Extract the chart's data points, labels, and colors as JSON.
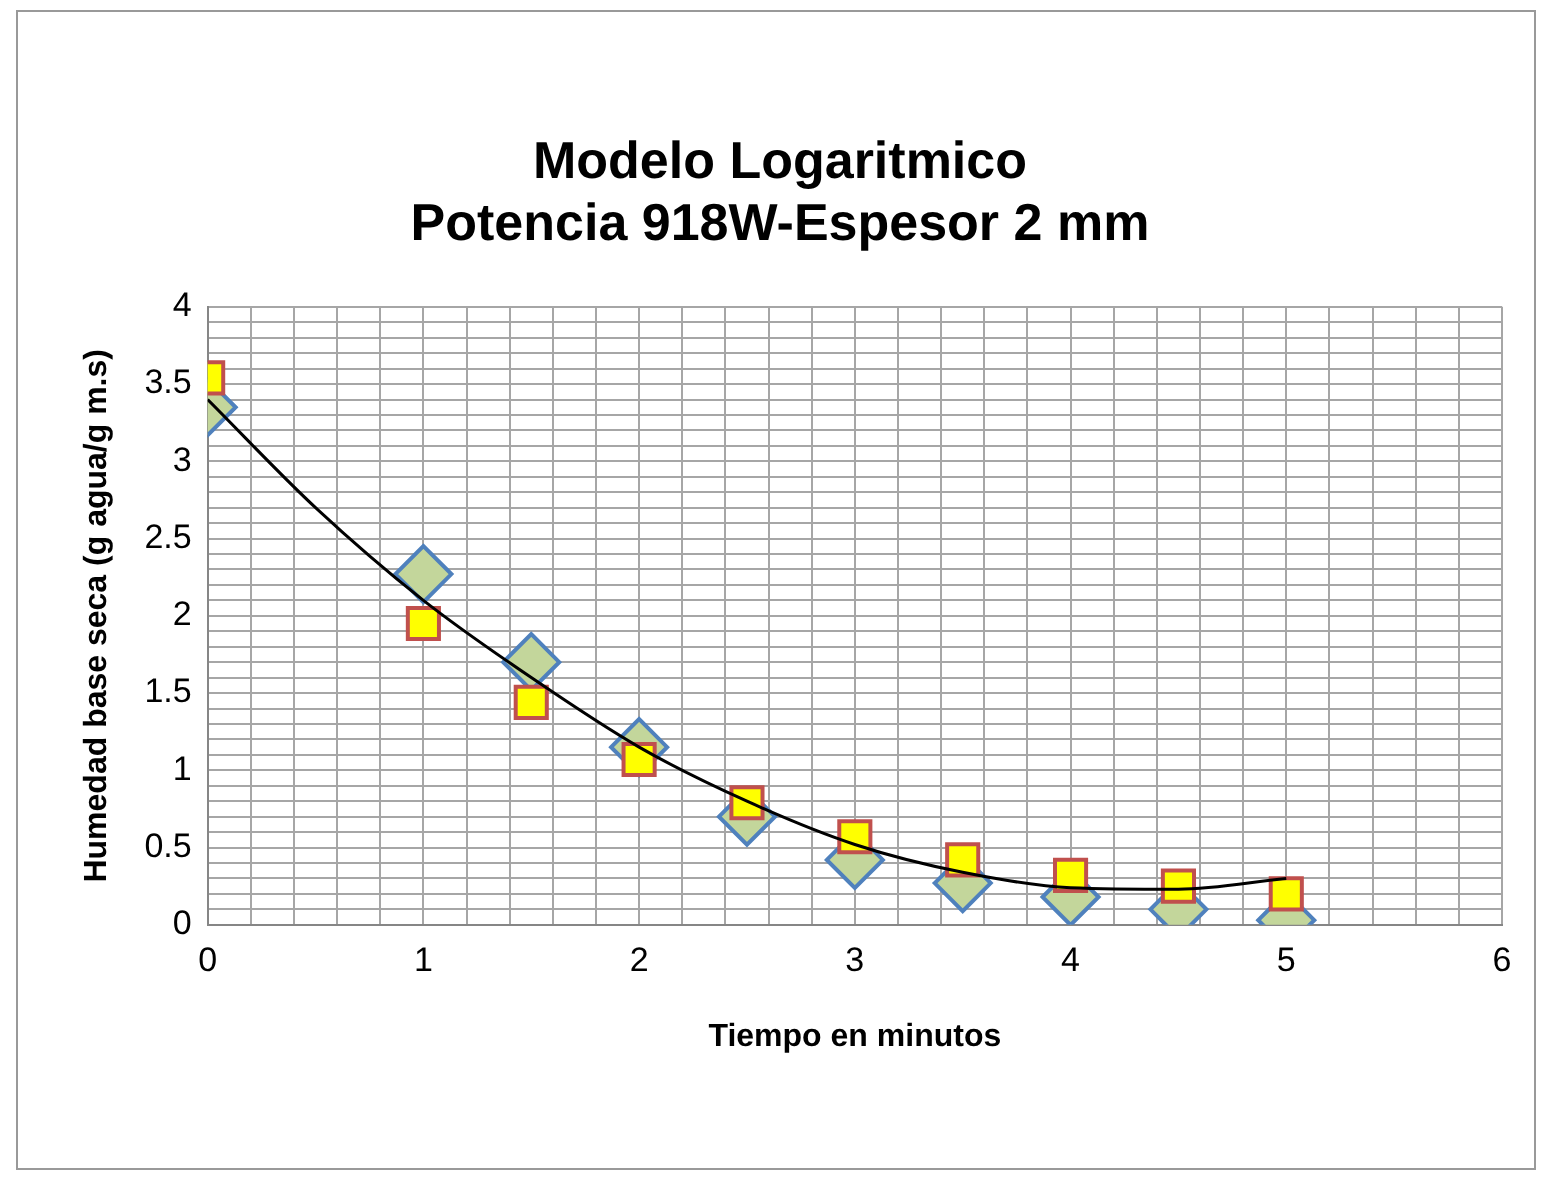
{
  "chart_data": {
    "type": "scatter",
    "title": [
      "Modelo Logaritmico",
      "Potencia 918W-Espesor 2 mm"
    ],
    "xlabel": "Tiempo en minutos",
    "ylabel": "Humedad base seca (g agua/g m.s)",
    "x": [
      0,
      1,
      1.5,
      2,
      2.5,
      3,
      3.5,
      4,
      4.5,
      5
    ],
    "series": [
      {
        "color": "#c3d69b",
        "marker": "diamond",
        "values": [
          3.35,
          2.27,
          1.7,
          1.15,
          0.7,
          0.42,
          0.27,
          0.18,
          0.1,
          0.03
        ]
      },
      {
        "color": "#ffff00",
        "marker": "square",
        "values": [
          3.54,
          1.95,
          1.44,
          1.07,
          0.79,
          0.57,
          0.42,
          0.32,
          0.25,
          0.2
        ]
      },
      {
        "type": "line",
        "color": "#000000",
        "marker": "none",
        "x": [
          0,
          0.5,
          1,
          1.5,
          2,
          2.5,
          3,
          3.5,
          4,
          4.5,
          5
        ],
        "values": [
          3.4,
          2.7,
          2.1,
          1.6,
          1.15,
          0.8,
          0.52,
          0.34,
          0.24,
          0.23,
          0.3
        ]
      }
    ],
    "xlim": [
      0,
      6
    ],
    "ylim": [
      0,
      4
    ],
    "xticks": [
      0,
      {
        "value": 0.2,
        "label": null
      },
      {
        "value": 0.4,
        "label": null
      },
      {
        "value": 0.6,
        "label": null
      },
      {
        "value": 0.8,
        "label": null
      },
      1,
      {
        "value": 1.2,
        "label": null
      },
      {
        "value": 1.4,
        "label": null
      },
      {
        "value": 1.6,
        "label": null
      },
      {
        "value": 1.8,
        "label": null
      },
      2,
      {
        "value": 2.2,
        "label": null
      },
      {
        "value": 2.4,
        "label": null
      },
      {
        "value": 2.6,
        "label": null
      },
      {
        "value": 2.8,
        "label": null
      },
      3,
      {
        "value": 3.2,
        "label": null
      },
      {
        "value": 3.4,
        "label": null
      },
      {
        "value": 3.6,
        "label": null
      },
      {
        "value": 3.8,
        "label": null
      },
      4,
      {
        "value": 4.2,
        "label": null
      },
      {
        "value": 4.4,
        "label": null
      },
      {
        "value": 4.6,
        "label": null
      },
      {
        "value": 4.8,
        "label": null
      },
      5,
      {
        "value": 5.2,
        "label": null
      },
      {
        "value": 5.4,
        "label": null
      },
      {
        "value": 5.6,
        "label": null
      },
      {
        "value": 5.8,
        "label": null
      },
      6
    ],
    "yticks": [
      0,
      {
        "value": 0.1,
        "label": null
      },
      {
        "value": 0.2,
        "label": null
      },
      {
        "value": 0.3,
        "label": null
      },
      {
        "value": 0.4,
        "label": null
      },
      0.5,
      {
        "value": 0.6,
        "label": null
      },
      {
        "value": 0.7,
        "label": null
      },
      {
        "value": 0.8,
        "label": null
      },
      {
        "value": 0.9,
        "label": null
      },
      1,
      {
        "value": 1.1,
        "label": null
      },
      {
        "value": 1.2,
        "label": null
      },
      {
        "value": 1.3,
        "label": null
      },
      {
        "value": 1.4,
        "label": null
      },
      1.5,
      {
        "value": 1.6,
        "label": null
      },
      {
        "value": 1.7,
        "label": null
      },
      {
        "value": 1.8,
        "label": null
      },
      {
        "value": 1.9,
        "label": null
      },
      2,
      {
        "value": 2.1,
        "label": null
      },
      {
        "value": 2.2,
        "label": null
      },
      {
        "value": 2.3,
        "label": null
      },
      {
        "value": 2.4,
        "label": null
      },
      2.5,
      {
        "value": 2.6,
        "label": null
      },
      {
        "value": 2.7,
        "label": null
      },
      {
        "value": 2.8,
        "label": null
      },
      {
        "value": 2.9,
        "label": null
      },
      3,
      {
        "value": 3.1,
        "label": null
      },
      {
        "value": 3.2,
        "label": null
      },
      {
        "value": 3.3,
        "label": null
      },
      {
        "value": 3.4,
        "label": null
      },
      3.5,
      {
        "value": 3.6,
        "label": null
      },
      {
        "value": 3.7,
        "label": null
      },
      {
        "value": 3.8,
        "label": null
      },
      {
        "value": 3.9,
        "label": null
      },
      4
    ],
    "grid": true,
    "legend": false
  }
}
